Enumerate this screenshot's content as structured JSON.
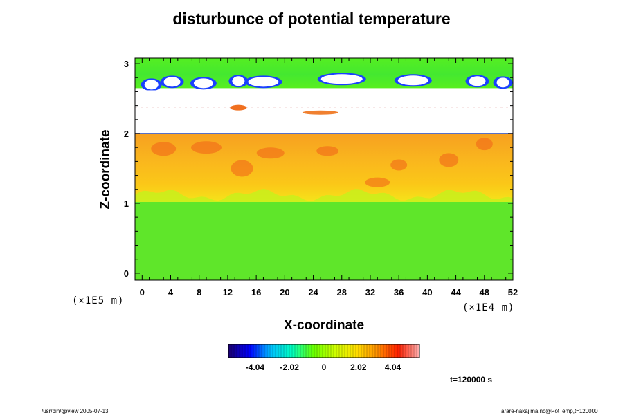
{
  "chart_data": {
    "type": "heatmap",
    "title": "disturbunce of potential temperature",
    "xlabel": "X-coordinate",
    "ylabel": "Z-coordinate",
    "x_ticks": [
      "0",
      "4",
      "8",
      "12",
      "16",
      "20",
      "24",
      "28",
      "32",
      "36",
      "40",
      "44",
      "48",
      "52"
    ],
    "x_tick_values": [
      0,
      4,
      8,
      12,
      16,
      20,
      24,
      28,
      32,
      36,
      40,
      44,
      48,
      52
    ],
    "x_unit": "(×1E4 m)",
    "xlim": [
      -1,
      52
    ],
    "y_ticks": [
      "0",
      "1",
      "2",
      "3"
    ],
    "y_tick_values": [
      0,
      1,
      2,
      3
    ],
    "y_unit": "(×1E5 m)",
    "ylim": [
      -0.1,
      3.08
    ],
    "colorbar": {
      "ticks": [
        "-4.04",
        "-2.02",
        "0",
        "2.02",
        "4.04"
      ],
      "tick_values": [
        -4.04,
        -2.02,
        0,
        2.02,
        4.04
      ],
      "range": [
        -5.6,
        5.6
      ],
      "colors": [
        "#1a006e",
        "#0000ff",
        "#00bfff",
        "#00ffbf",
        "#66ff00",
        "#ccff00",
        "#ffe000",
        "#ff9000",
        "#ff2000",
        "#ffb0b0"
      ]
    },
    "field_description_levels": [
      {
        "z_from": -0.1,
        "z_to": 1.0,
        "value": 0.3
      },
      {
        "z_from": 1.0,
        "z_to": 1.35,
        "value": 2.5
      },
      {
        "z_from": 1.35,
        "z_to": 2.0,
        "value": 3.2
      },
      {
        "z_from": 2.0,
        "z_to": 2.65,
        "value": null
      },
      {
        "z_from": 2.65,
        "z_to": 3.08,
        "value": 0.2
      }
    ]
  },
  "annotations": {
    "time_label": "t=120000 s",
    "footer_left": "/usr/bin/gpview 2005-07-13",
    "footer_right": "arare-nakajima.nc@PotTemp,t=120000"
  }
}
